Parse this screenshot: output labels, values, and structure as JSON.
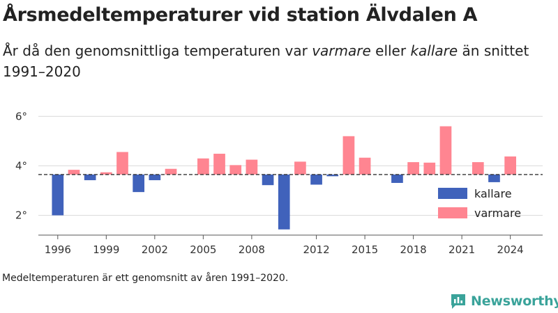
{
  "title": "Årsmedeltemperaturer vid station Älvdalen A",
  "subtitle": {
    "part1": "År då den genomsnittliga temperaturen var ",
    "warm_word": "varmare",
    "part2": " eller ",
    "cold_word": "kallare",
    "part3": " än snittet 1991–2020"
  },
  "footnote": "Medeltemperaturen är ett genomsnitt av åren 1991–2020.",
  "brand": "Newsworthy",
  "colors": {
    "kallare": "#4062bb",
    "varmare": "#ff8591",
    "grid": "#dddddd",
    "baseline": "#333333",
    "brand": "#3aa39a"
  },
  "chart_data": {
    "type": "bar",
    "baseline_value": 3.65,
    "ylim": [
      1.2,
      6.6
    ],
    "yticks": [
      2,
      4,
      6
    ],
    "ytick_labels": [
      "2°",
      "4°",
      "6°"
    ],
    "xlim": [
      1994.8,
      2026
    ],
    "xticks": [
      1996,
      1999,
      2002,
      2005,
      2008,
      2012,
      2015,
      2018,
      2021,
      2024
    ],
    "legend": {
      "placement": "right",
      "entries": [
        {
          "key": "kallare",
          "label": "kallare"
        },
        {
          "key": "varmare",
          "label": "varmare"
        }
      ]
    },
    "years": [
      1996,
      1997,
      1998,
      1999,
      2000,
      2001,
      2002,
      2003,
      2004,
      2005,
      2006,
      2007,
      2008,
      2009,
      2010,
      2011,
      2012,
      2013,
      2014,
      2015,
      2016,
      2017,
      2018,
      2019,
      2020,
      2021,
      2022,
      2023,
      2024
    ],
    "values": [
      2.0,
      3.84,
      3.42,
      3.74,
      4.56,
      2.94,
      3.42,
      3.88,
      3.65,
      4.3,
      4.49,
      4.03,
      4.25,
      3.22,
      1.43,
      4.17,
      3.24,
      3.58,
      5.2,
      4.33,
      3.65,
      3.31,
      4.15,
      4.13,
      5.6,
      3.65,
      4.15,
      3.34,
      4.38
    ]
  }
}
